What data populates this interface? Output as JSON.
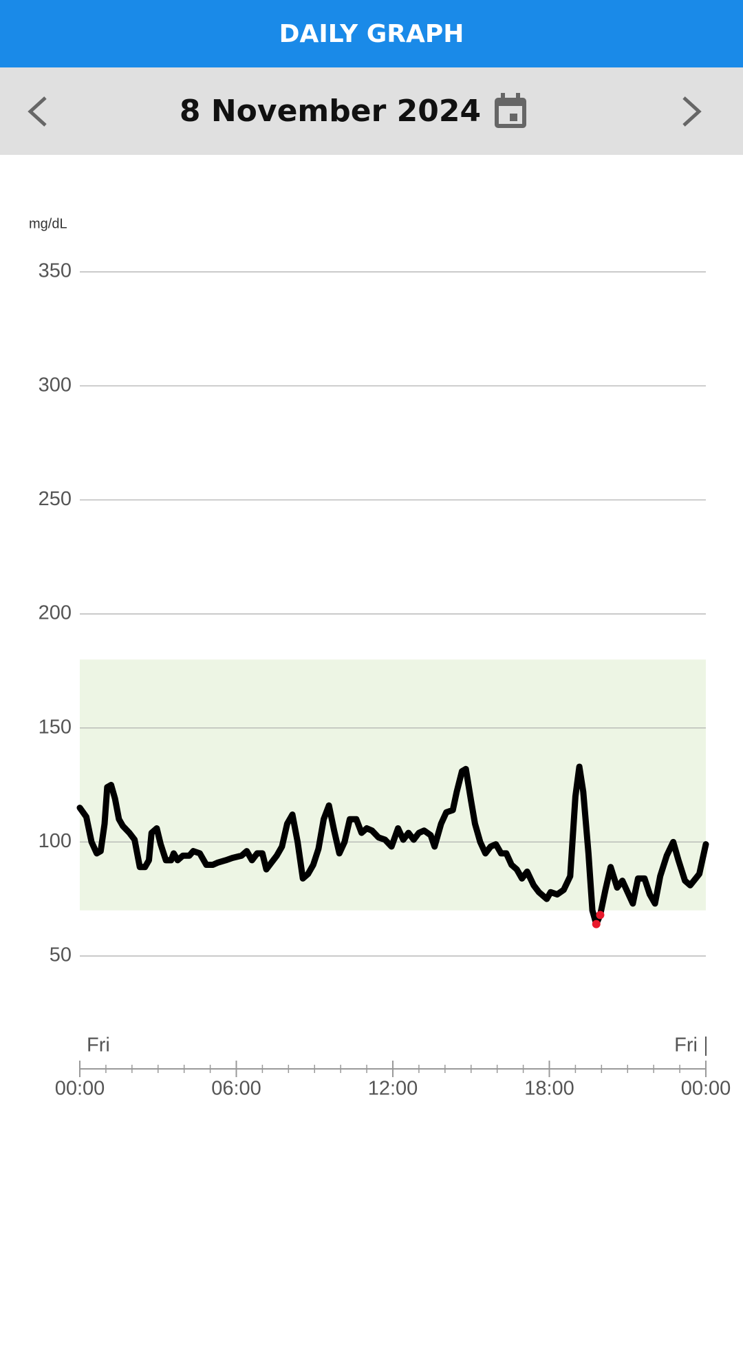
{
  "header": {
    "title": "DAILY GRAPH",
    "date": "8 November 2024"
  },
  "chart_data": {
    "type": "line",
    "y_unit": "mg/dL",
    "x": [
      0,
      0.25,
      0.45,
      0.65,
      0.8,
      0.95,
      1.05,
      1.2,
      1.35,
      1.5,
      1.65,
      1.9,
      2.1,
      2.3,
      2.5,
      2.65,
      2.75,
      2.95,
      3.1,
      3.3,
      3.5,
      3.6,
      3.75,
      3.95,
      4.2,
      4.35,
      4.6,
      4.85,
      5.1,
      5.3,
      5.6,
      5.85,
      6.2,
      6.4,
      6.6,
      6.8,
      7.0,
      7.15,
      7.35,
      7.55,
      7.75,
      7.95,
      8.15,
      8.35,
      8.55,
      8.75,
      8.95,
      9.15,
      9.35,
      9.55,
      9.75,
      9.95,
      10.15,
      10.35,
      10.6,
      10.8,
      11.0,
      11.2,
      11.45,
      11.7,
      11.95,
      12.2,
      12.4,
      12.6,
      12.8,
      13.0,
      13.2,
      13.45,
      13.6,
      13.85,
      14.05,
      14.3,
      14.45,
      14.65,
      14.8,
      15.0,
      15.15,
      15.35,
      15.55,
      15.75,
      15.95,
      16.15,
      16.35,
      16.55,
      16.75,
      16.95,
      17.15,
      17.4,
      17.6,
      17.9,
      18.05,
      18.3,
      18.55,
      18.8,
      19.0,
      19.15,
      19.3,
      19.5,
      19.65,
      19.8,
      19.95,
      20.15,
      20.35,
      20.6,
      20.8,
      21.0,
      21.2,
      21.4,
      21.65,
      21.85,
      22.05,
      22.25,
      22.5,
      22.75,
      22.95,
      23.2,
      23.4,
      23.75,
      24.0
    ],
    "values": [
      115,
      111,
      100,
      95,
      96,
      108,
      124,
      125,
      119,
      110,
      107,
      104,
      101,
      89,
      89,
      92,
      104,
      106,
      99,
      92,
      92,
      95,
      92,
      94,
      94,
      96,
      95,
      90,
      90,
      91,
      92,
      93,
      94,
      96,
      92,
      95,
      95,
      88,
      91,
      94,
      98,
      108,
      112,
      100,
      84,
      86,
      90,
      97,
      110,
      116,
      105,
      95,
      100,
      110,
      110,
      104,
      106,
      105,
      102,
      101,
      98,
      106,
      101,
      104,
      101,
      104,
      105,
      103,
      98,
      108,
      113,
      114,
      122,
      131,
      132,
      118,
      108,
      100,
      95,
      98,
      99,
      95,
      95,
      90,
      88,
      84,
      87,
      81,
      78,
      75,
      78,
      77,
      79,
      85,
      120,
      133,
      122,
      95,
      70,
      64,
      68,
      79,
      89,
      80,
      83,
      78,
      73,
      84,
      84,
      77,
      73,
      85,
      94,
      100,
      92,
      83,
      81,
      86,
      99
    ],
    "color": "#000000",
    "low_color": "#e8192c",
    "target_range": [
      70,
      180
    ],
    "target_color": "#edf5e4",
    "xlim": [
      0,
      24
    ],
    "ylim": [
      30,
      370
    ],
    "yticks": [
      50,
      100,
      150,
      200,
      250,
      300,
      350
    ],
    "grid": true,
    "xticks": [
      {
        "value": 0,
        "label": "00:00"
      },
      {
        "value": 6,
        "label": "06:00"
      },
      {
        "value": 12,
        "label": "12:00"
      },
      {
        "value": 18,
        "label": "18:00"
      },
      {
        "value": 24,
        "label": "00:00"
      }
    ],
    "day_labels": [
      "Fri",
      "Fri"
    ]
  }
}
